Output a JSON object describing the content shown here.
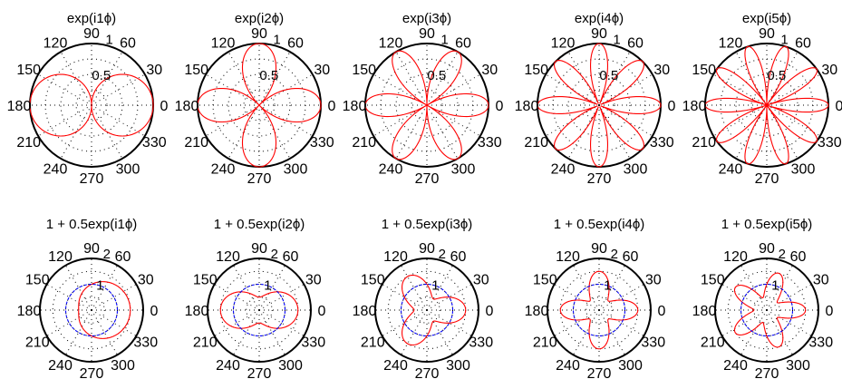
{
  "chart_data": [
    {
      "type": "polar",
      "title": "exp(i1ϕ)",
      "rmax": 1,
      "radial_ticks": [
        "0.5",
        "1"
      ],
      "angle_labels": [
        "0",
        "30",
        "60",
        "90",
        "120",
        "150",
        "180",
        "210",
        "240",
        "270",
        "300",
        "330"
      ],
      "series": [
        {
          "formula": "|cos(1·phi)|",
          "color": "#ff0000"
        }
      ]
    },
    {
      "type": "polar",
      "title": "exp(i2ϕ)",
      "rmax": 1,
      "radial_ticks": [
        "0.5",
        "1"
      ],
      "angle_labels": [
        "0",
        "30",
        "60",
        "90",
        "120",
        "150",
        "180",
        "210",
        "240",
        "270",
        "300",
        "330"
      ],
      "series": [
        {
          "formula": "|cos(2·phi)|",
          "color": "#ff0000"
        }
      ]
    },
    {
      "type": "polar",
      "title": "exp(i3ϕ)",
      "rmax": 1,
      "radial_ticks": [
        "0.5",
        "1"
      ],
      "angle_labels": [
        "0",
        "30",
        "60",
        "90",
        "120",
        "150",
        "180",
        "210",
        "240",
        "270",
        "300",
        "330"
      ],
      "series": [
        {
          "formula": "|cos(3·phi)|",
          "color": "#ff0000"
        }
      ]
    },
    {
      "type": "polar",
      "title": "exp(i4ϕ)",
      "rmax": 1,
      "radial_ticks": [
        "0.5",
        "1"
      ],
      "angle_labels": [
        "0",
        "30",
        "60",
        "90",
        "120",
        "150",
        "180",
        "210",
        "240",
        "270",
        "300",
        "330"
      ],
      "series": [
        {
          "formula": "|cos(4·phi)|",
          "color": "#ff0000"
        }
      ]
    },
    {
      "type": "polar",
      "title": "exp(i5ϕ)",
      "rmax": 1,
      "radial_ticks": [
        "0.5",
        "1"
      ],
      "angle_labels": [
        "0",
        "30",
        "60",
        "90",
        "120",
        "150",
        "180",
        "210",
        "240",
        "270",
        "300",
        "330"
      ],
      "series": [
        {
          "formula": "|cos(5·phi)|",
          "color": "#ff0000"
        }
      ]
    },
    {
      "type": "polar",
      "title": "1 + 0.5exp(i1ϕ)",
      "rmax": 2,
      "radial_ticks": [
        "1",
        "2"
      ],
      "angle_labels": [
        "0",
        "30",
        "60",
        "90",
        "120",
        "150",
        "180",
        "210",
        "240",
        "270",
        "300",
        "330"
      ],
      "series": [
        {
          "formula": "1 + 0.5·cos(1·phi)",
          "color": "#ff0000"
        },
        {
          "formula": "1",
          "color": "#0000ff"
        }
      ]
    },
    {
      "type": "polar",
      "title": "1 + 0.5exp(i2ϕ)",
      "rmax": 2,
      "radial_ticks": [
        "1",
        "2"
      ],
      "angle_labels": [
        "0",
        "30",
        "60",
        "90",
        "120",
        "150",
        "180",
        "210",
        "240",
        "270",
        "300",
        "330"
      ],
      "series": [
        {
          "formula": "1 + 0.5·cos(2·phi)",
          "color": "#ff0000"
        },
        {
          "formula": "1",
          "color": "#0000ff"
        }
      ]
    },
    {
      "type": "polar",
      "title": "1 + 0.5exp(i3ϕ)",
      "rmax": 2,
      "radial_ticks": [
        "1",
        "2"
      ],
      "angle_labels": [
        "0",
        "30",
        "60",
        "90",
        "120",
        "150",
        "180",
        "210",
        "240",
        "270",
        "300",
        "330"
      ],
      "series": [
        {
          "formula": "1 + 0.5·cos(3·phi)",
          "color": "#ff0000"
        },
        {
          "formula": "1",
          "color": "#0000ff"
        }
      ]
    },
    {
      "type": "polar",
      "title": "1 + 0.5exp(i4ϕ)",
      "rmax": 2,
      "radial_ticks": [
        "1",
        "2"
      ],
      "angle_labels": [
        "0",
        "30",
        "60",
        "90",
        "120",
        "150",
        "180",
        "210",
        "240",
        "270",
        "300",
        "330"
      ],
      "series": [
        {
          "formula": "1 + 0.5·cos(4·phi)",
          "color": "#ff0000"
        },
        {
          "formula": "1",
          "color": "#0000ff"
        }
      ]
    },
    {
      "type": "polar",
      "title": "1 + 0.5exp(i5ϕ)",
      "rmax": 2,
      "radial_ticks": [
        "1",
        "2"
      ],
      "angle_labels": [
        "0",
        "30",
        "60",
        "90",
        "120",
        "150",
        "180",
        "210",
        "240",
        "270",
        "300",
        "330"
      ],
      "series": [
        {
          "formula": "1 + 0.5·cos(5·phi)",
          "color": "#ff0000"
        },
        {
          "formula": "1",
          "color": "#0000ff"
        }
      ]
    }
  ]
}
